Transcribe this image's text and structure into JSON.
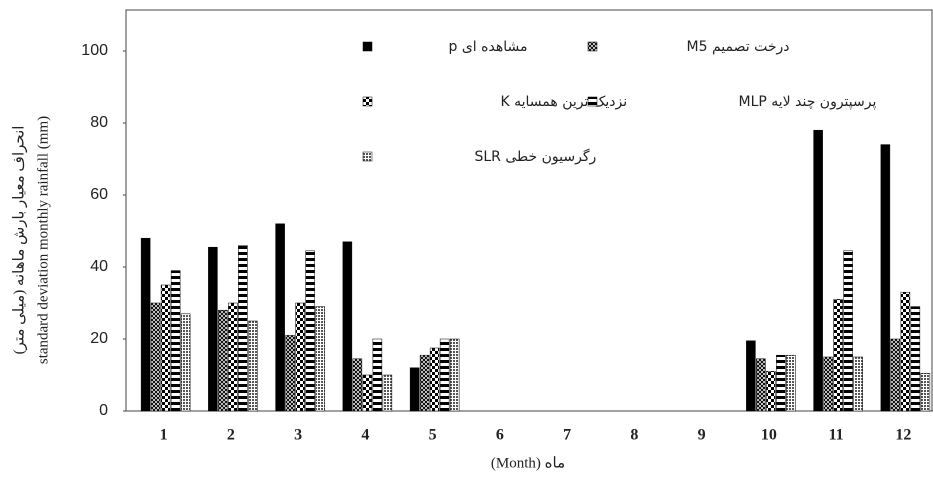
{
  "chart_data": {
    "type": "bar",
    "y_label": [
      "انحراف معیار بارش ماهانه (میلی متر)",
      "standard deviation monthly rainfall (mm)"
    ],
    "x_label": "(Month) ماه",
    "categories": [
      "1",
      "2",
      "3",
      "4",
      "5",
      "6",
      "7",
      "8",
      "9",
      "10",
      "11",
      "12"
    ],
    "series": [
      {
        "name": "مشاهده ای p",
        "color": "#000000",
        "pattern": "solid",
        "values": [
          48,
          45.5,
          52,
          47,
          12,
          null,
          null,
          null,
          null,
          19.5,
          78,
          74
        ]
      },
      {
        "name": "درخت تصمیم M5",
        "color": "#000000",
        "pattern": "cross",
        "values": [
          30,
          28,
          21,
          14.5,
          15.5,
          null,
          null,
          null,
          null,
          14.5,
          15,
          20
        ]
      },
      {
        "name": "نزدیک ترین همسایه K",
        "color": "#000000",
        "pattern": "checker",
        "values": [
          35,
          30,
          30,
          10,
          17.5,
          null,
          null,
          null,
          null,
          11,
          31,
          33
        ]
      },
      {
        "name": "پرسپترون چند لایه MLP",
        "color": "#000000",
        "pattern": "dash",
        "values": [
          39,
          46,
          44.5,
          20,
          20,
          null,
          null,
          null,
          null,
          15.5,
          44.5,
          29
        ]
      },
      {
        "name": "رگرسیون خطی SLR",
        "color": "#000000",
        "pattern": "dot",
        "values": [
          27,
          25,
          29,
          10,
          20,
          null,
          null,
          null,
          null,
          15.5,
          15,
          10.5
        ]
      }
    ],
    "ylim": [
      0,
      100
    ],
    "yticks": [
      0,
      20,
      40,
      60,
      80,
      100
    ],
    "grid": false
  }
}
